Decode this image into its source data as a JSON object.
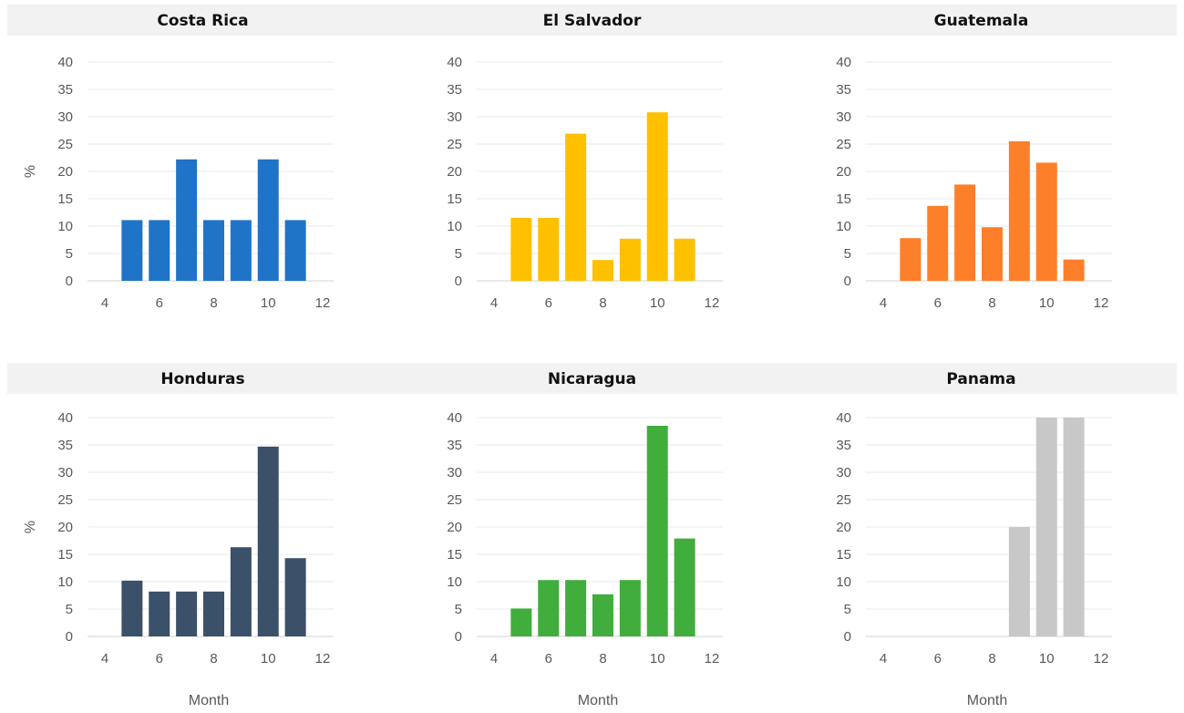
{
  "chart_data": [
    {
      "type": "bar",
      "title": "Costa Rica",
      "color": "#1f74c8",
      "xlabel": "",
      "ylabel": "%",
      "x": [
        5,
        6,
        7,
        8,
        9,
        10,
        11
      ],
      "values": [
        11.1,
        11.1,
        22.2,
        11.1,
        11.1,
        22.2,
        11.1
      ],
      "xlim": [
        4,
        12
      ],
      "xticks": [
        "4",
        "6",
        "8",
        "10",
        "12"
      ],
      "ylim": [
        0,
        40
      ],
      "yticks": [
        "0",
        "5",
        "10",
        "15",
        "20",
        "25",
        "30",
        "35",
        "40"
      ],
      "grid": true
    },
    {
      "type": "bar",
      "title": "El Salvador",
      "color": "#ffc000",
      "xlabel": "",
      "ylabel": "",
      "x": [
        5,
        6,
        7,
        8,
        9,
        10,
        11
      ],
      "values": [
        11.5,
        11.5,
        26.9,
        3.8,
        7.7,
        30.8,
        7.7
      ],
      "xlim": [
        4,
        12
      ],
      "xticks": [
        "4",
        "6",
        "8",
        "10",
        "12"
      ],
      "ylim": [
        0,
        40
      ],
      "yticks": [
        "0",
        "5",
        "10",
        "15",
        "20",
        "25",
        "30",
        "35",
        "40"
      ],
      "grid": true
    },
    {
      "type": "bar",
      "title": "Guatemala",
      "color": "#fd7f2a",
      "xlabel": "",
      "ylabel": "",
      "x": [
        5,
        6,
        7,
        8,
        9,
        10,
        11
      ],
      "values": [
        7.8,
        13.7,
        17.6,
        9.8,
        25.5,
        21.6,
        3.9
      ],
      "xlim": [
        4,
        12
      ],
      "xticks": [
        "4",
        "6",
        "8",
        "10",
        "12"
      ],
      "ylim": [
        0,
        40
      ],
      "yticks": [
        "0",
        "5",
        "10",
        "15",
        "20",
        "25",
        "30",
        "35",
        "40"
      ],
      "grid": true
    },
    {
      "type": "bar",
      "title": "Honduras",
      "color": "#3b5069",
      "xlabel": "Month",
      "ylabel": "%",
      "x": [
        5,
        6,
        7,
        8,
        9,
        10,
        11
      ],
      "values": [
        10.2,
        8.2,
        8.2,
        8.2,
        16.3,
        34.7,
        14.3
      ],
      "xlim": [
        4,
        12
      ],
      "xticks": [
        "4",
        "6",
        "8",
        "10",
        "12"
      ],
      "ylim": [
        0,
        40
      ],
      "yticks": [
        "0",
        "5",
        "10",
        "15",
        "20",
        "25",
        "30",
        "35",
        "40"
      ],
      "grid": true
    },
    {
      "type": "bar",
      "title": "Nicaragua",
      "color": "#41ad3d",
      "xlabel": "Month",
      "ylabel": "",
      "x": [
        5,
        6,
        7,
        8,
        9,
        10,
        11
      ],
      "values": [
        5.1,
        10.3,
        10.3,
        7.7,
        10.3,
        38.5,
        17.9
      ],
      "xlim": [
        4,
        12
      ],
      "xticks": [
        "4",
        "6",
        "8",
        "10",
        "12"
      ],
      "ylim": [
        0,
        40
      ],
      "yticks": [
        "0",
        "5",
        "10",
        "15",
        "20",
        "25",
        "30",
        "35",
        "40"
      ],
      "grid": true
    },
    {
      "type": "bar",
      "title": "Panama",
      "color": "#c8c8c8",
      "xlabel": "Month",
      "ylabel": "",
      "x": [
        9,
        10,
        11
      ],
      "values": [
        20,
        40,
        40
      ],
      "xlim": [
        4,
        12
      ],
      "xticks": [
        "4",
        "6",
        "8",
        "10",
        "12"
      ],
      "ylim": [
        0,
        40
      ],
      "yticks": [
        "0",
        "5",
        "10",
        "15",
        "20",
        "25",
        "30",
        "35",
        "40"
      ],
      "grid": true
    }
  ]
}
